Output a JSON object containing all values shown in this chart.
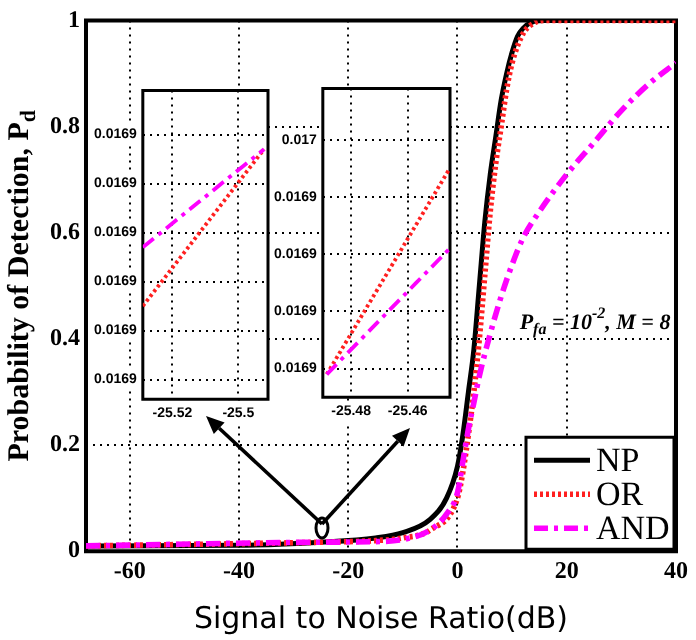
{
  "chart_data": [
    {
      "type": "line",
      "xlabel": "Signal to Noise Ratio(dB)",
      "ylabel": "Probability of Detection, P$_{d}$",
      "xlim": [
        -68,
        40
      ],
      "ylim": [
        0,
        1
      ],
      "xticks": [
        -60,
        -40,
        -20,
        0,
        20,
        40
      ],
      "yticks": [
        0,
        0.2,
        0.4,
        0.6,
        0.8,
        1
      ],
      "grid": true,
      "legend": "bottom right",
      "annotations": [
        "P$_{fa}$ = 10$^{-2}$, M = 8"
      ],
      "series": [
        {
          "name": "NP",
          "color": "#000000",
          "line_style": "solid",
          "x": [
            -68,
            -40,
            -25,
            -15,
            -10,
            -5,
            -2,
            0,
            1,
            2,
            3,
            4,
            5,
            6,
            7,
            8,
            9,
            10,
            11,
            12,
            14,
            16,
            40
          ],
          "values": [
            0.01,
            0.011,
            0.017,
            0.025,
            0.035,
            0.06,
            0.1,
            0.16,
            0.22,
            0.3,
            0.38,
            0.5,
            0.62,
            0.71,
            0.78,
            0.85,
            0.9,
            0.94,
            0.97,
            0.985,
            0.998,
            1,
            1
          ]
        },
        {
          "name": "OR",
          "color": "#ff2020",
          "line_style": "dotted",
          "x": [
            -68,
            -25,
            -15,
            -10,
            -5,
            0,
            1,
            2,
            3,
            4,
            5,
            6,
            7,
            8,
            9,
            10,
            12,
            14,
            16,
            40
          ],
          "values": [
            0.01,
            0.017,
            0.02,
            0.025,
            0.04,
            0.1,
            0.15,
            0.22,
            0.3,
            0.4,
            0.52,
            0.64,
            0.73,
            0.8,
            0.87,
            0.92,
            0.975,
            0.995,
            1,
            1
          ]
        },
        {
          "name": "AND",
          "color": "#ff00ff",
          "line_style": "dashed",
          "x": [
            -68,
            -25,
            -15,
            -10,
            -5,
            -2,
            0,
            1,
            2,
            3,
            4,
            6,
            8,
            10,
            12,
            15,
            20,
            25,
            30,
            35,
            40
          ],
          "values": [
            0.01,
            0.017,
            0.018,
            0.022,
            0.04,
            0.07,
            0.11,
            0.17,
            0.23,
            0.28,
            0.33,
            0.41,
            0.48,
            0.54,
            0.59,
            0.64,
            0.71,
            0.77,
            0.83,
            0.88,
            0.92
          ]
        }
      ]
    },
    {
      "type": "line",
      "xlim": [
        -25.529,
        -25.491
      ],
      "ylim": [
        0.016856,
        0.016919
      ],
      "xticks": [
        -25.52,
        -25.5
      ],
      "yticks": [
        {
          "value": 0.01686,
          "label": "0.0169"
        },
        {
          "value": 0.01687,
          "label": "0.0169"
        },
        {
          "value": 0.01688,
          "label": "0.0169"
        },
        {
          "value": 0.01689,
          "label": "0.0169"
        },
        {
          "value": 0.0169,
          "label": "0.0169"
        },
        {
          "value": 0.01691,
          "label": "0.0169"
        }
      ],
      "grid": true,
      "series": [
        {
          "color": "#ff2020",
          "line_style": "dotted",
          "x": [
            -25.529,
            -25.4922
          ],
          "values": [
            0.016875,
            0.016907
          ]
        },
        {
          "color": "#ff00ff",
          "line_style": "dashed",
          "x": [
            -25.529,
            -25.4922
          ],
          "values": [
            0.016887,
            0.016907
          ]
        }
      ]
    },
    {
      "type": "line",
      "xlim": [
        -25.49,
        -25.445
      ],
      "ylim": [
        0.016905,
        0.016959
      ],
      "xticks": [
        -25.48,
        -25.46
      ],
      "yticks": [
        {
          "value": 0.01691,
          "label": "0.0169"
        },
        {
          "value": 0.01692,
          "label": "0.0169"
        },
        {
          "value": 0.01693,
          "label": "0.0169"
        },
        {
          "value": 0.01694,
          "label": "0.0169"
        },
        {
          "value": 0.01695,
          "label": "0.017"
        }
      ],
      "grid": true,
      "series": [
        {
          "color": "#ff2020",
          "line_style": "dotted",
          "x": [
            -25.4886,
            -25.4451
          ],
          "values": [
            0.016909,
            0.016945
          ]
        },
        {
          "color": "#ff00ff",
          "line_style": "dashed",
          "x": [
            -25.4886,
            -25.4451
          ],
          "values": [
            0.016909,
            0.016931
          ]
        }
      ]
    }
  ]
}
